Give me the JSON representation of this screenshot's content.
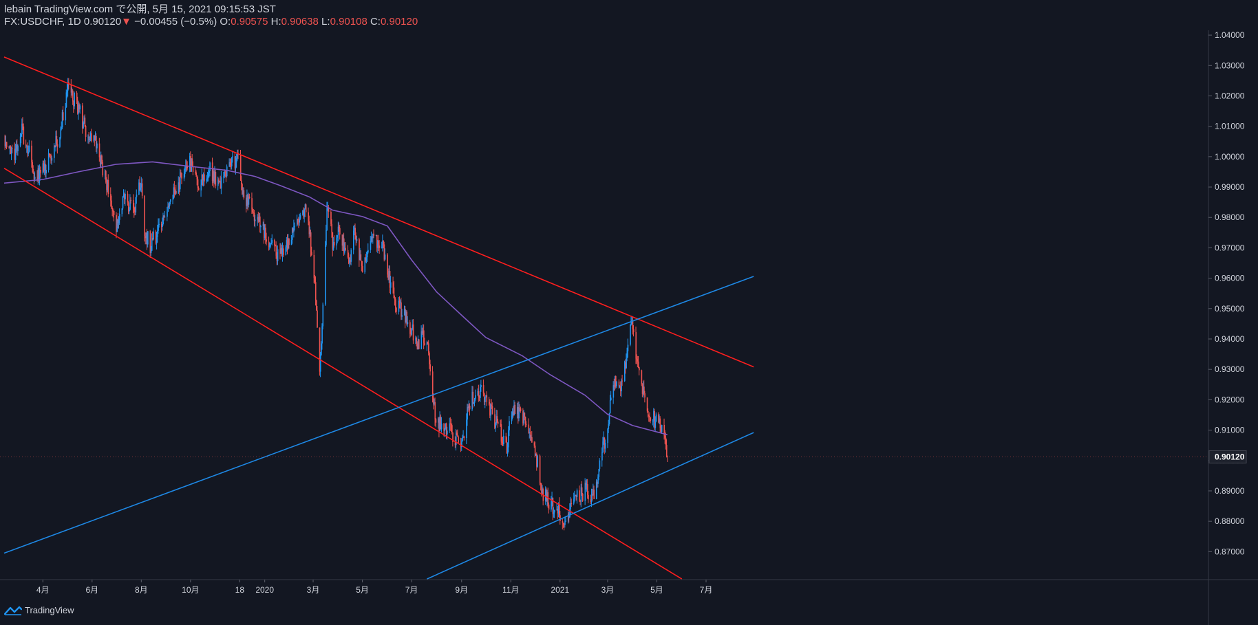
{
  "header": {
    "line1": "lebain TradingView.com で公開, 5月 15, 2021 09:15:53 JST",
    "symbol": "FX:USDCHF, 1D",
    "last": "0.90120",
    "down_arrow": "▼",
    "change": "−0.00455 (−0.5%)",
    "o_label": "O:",
    "o_val": "0.90575",
    "h_label": "H:",
    "h_val": "0.90638",
    "l_label": "L:",
    "l_val": "0.90108",
    "c_label": "C:",
    "c_val": "0.90120"
  },
  "footer": {
    "brand": "TradingView"
  },
  "colors": {
    "background": "#131722",
    "up": "#2196f3",
    "down": "#ef5350",
    "ma": "#7e57c2",
    "channel_red": "#ff1e1e",
    "channel_blue": "#1e88e5",
    "axis_text": "#d1d4dc",
    "axis_line": "#363a45"
  },
  "chart_data": {
    "type": "candlestick",
    "symbol": "FX:USDCHF",
    "interval": "1D",
    "ylim": [
      0.8608,
      1.0416
    ],
    "ytick_values": [
      0.87,
      0.88,
      0.89,
      0.9,
      0.91,
      0.92,
      0.93,
      0.94,
      0.95,
      0.96,
      0.97,
      0.98,
      0.99,
      1.0,
      1.01,
      1.02,
      1.03,
      1.04
    ],
    "ytick_labels": [
      "0.87000",
      "0.88000",
      "0.89000",
      "0.90000",
      "0.91000",
      "0.92000",
      "0.93000",
      "0.94000",
      "0.95000",
      "0.96000",
      "0.97000",
      "0.98000",
      "0.99000",
      "1.00000",
      "1.01000",
      "1.02000",
      "1.03000",
      "1.04000"
    ],
    "xtick_labels": [
      "4月",
      "6月",
      "8月",
      "10月",
      "18",
      "2020",
      "3月",
      "5月",
      "7月",
      "9月",
      "11月",
      "2021",
      "3月",
      "5月",
      "7月"
    ],
    "xtick_dates": [
      "2019-04-01",
      "2019-06-01",
      "2019-08-01",
      "2019-10-01",
      "2019-12-01",
      "2020-01-01",
      "2020-03-01",
      "2020-05-01",
      "2020-07-01",
      "2020-09-01",
      "2020-11-01",
      "2021-01-01",
      "2021-03-01",
      "2021-05-01",
      "2021-07-01"
    ],
    "last_price_label": "0.90120",
    "last_price": 0.9012,
    "price_path": [
      [
        "2019-02-12",
        1.0055
      ],
      [
        "2019-02-25",
        1.001
      ],
      [
        "2019-03-05",
        1.009
      ],
      [
        "2019-03-15",
        1.001
      ],
      [
        "2019-03-22",
        0.993
      ],
      [
        "2019-04-05",
        0.9975
      ],
      [
        "2019-04-20",
        1.006
      ],
      [
        "2019-05-02",
        1.022
      ],
      [
        "2019-05-15",
        1.016
      ],
      [
        "2019-05-25",
        1.008
      ],
      [
        "2019-06-05",
        1.005
      ],
      [
        "2019-06-18",
        0.992
      ],
      [
        "2019-07-01",
        0.976
      ],
      [
        "2019-07-10",
        0.986
      ],
      [
        "2019-07-22",
        0.982
      ],
      [
        "2019-08-01",
        0.992
      ],
      [
        "2019-08-05",
        0.975
      ],
      [
        "2019-08-12",
        0.971
      ],
      [
        "2019-08-28",
        0.978
      ],
      [
        "2019-09-10",
        0.988
      ],
      [
        "2019-09-30",
        0.9985
      ],
      [
        "2019-10-10",
        0.99
      ],
      [
        "2019-10-25",
        0.996
      ],
      [
        "2019-11-05",
        0.9895
      ],
      [
        "2019-11-12",
        0.994
      ],
      [
        "2019-11-29",
        1.0
      ],
      [
        "2019-12-05",
        0.988
      ],
      [
        "2019-12-20",
        0.98
      ],
      [
        "2020-01-08",
        0.972
      ],
      [
        "2020-01-15",
        0.968
      ],
      [
        "2020-01-28",
        0.971
      ],
      [
        "2020-02-10",
        0.977
      ],
      [
        "2020-02-21",
        0.984
      ],
      [
        "2020-03-02",
        0.962
      ],
      [
        "2020-03-09",
        0.93
      ],
      [
        "2020-03-19",
        0.986
      ],
      [
        "2020-03-25",
        0.97
      ],
      [
        "2020-04-03",
        0.977
      ],
      [
        "2020-04-14",
        0.963
      ],
      [
        "2020-04-21",
        0.976
      ],
      [
        "2020-05-01",
        0.963
      ],
      [
        "2020-05-14",
        0.974
      ],
      [
        "2020-05-26",
        0.97
      ],
      [
        "2020-06-10",
        0.952
      ],
      [
        "2020-06-22",
        0.948
      ],
      [
        "2020-07-08",
        0.939
      ],
      [
        "2020-07-20",
        0.941
      ],
      [
        "2020-07-31",
        0.913
      ],
      [
        "2020-08-18",
        0.91
      ],
      [
        "2020-09-01",
        0.904
      ],
      [
        "2020-09-08",
        0.918
      ],
      [
        "2020-09-25",
        0.924
      ],
      [
        "2020-10-12",
        0.913
      ],
      [
        "2020-10-27",
        0.905
      ],
      [
        "2020-11-03",
        0.918
      ],
      [
        "2020-11-20",
        0.912
      ],
      [
        "2020-12-01",
        0.904
      ],
      [
        "2020-12-10",
        0.889
      ],
      [
        "2020-12-30",
        0.883
      ],
      [
        "2021-01-06",
        0.879
      ],
      [
        "2021-01-20",
        0.887
      ],
      [
        "2021-02-01",
        0.89
      ],
      [
        "2021-02-12",
        0.888
      ],
      [
        "2021-02-26",
        0.908
      ],
      [
        "2021-03-10",
        0.927
      ],
      [
        "2021-03-18",
        0.925
      ],
      [
        "2021-03-31",
        0.945
      ],
      [
        "2021-04-12",
        0.924
      ],
      [
        "2021-04-23",
        0.915
      ],
      [
        "2021-05-05",
        0.911
      ],
      [
        "2021-05-11",
        0.905
      ],
      [
        "2021-05-14",
        0.9012
      ]
    ],
    "ma": [
      [
        "2019-02-12",
        0.9913
      ],
      [
        "2019-04-01",
        0.9925
      ],
      [
        "2019-05-15",
        0.995
      ],
      [
        "2019-07-01",
        0.9975
      ],
      [
        "2019-08-15",
        0.9983
      ],
      [
        "2019-10-01",
        0.9968
      ],
      [
        "2019-11-15",
        0.9955
      ],
      [
        "2019-12-20",
        0.9935
      ],
      [
        "2020-01-20",
        0.9905
      ],
      [
        "2020-02-25",
        0.9868
      ],
      [
        "2020-03-25",
        0.9824
      ],
      [
        "2020-05-01",
        0.9803
      ],
      [
        "2020-06-01",
        0.9772
      ],
      [
        "2020-07-01",
        0.966
      ],
      [
        "2020-08-01",
        0.9555
      ],
      [
        "2020-09-01",
        0.9478
      ],
      [
        "2020-10-01",
        0.9405
      ],
      [
        "2020-11-15",
        0.9345
      ],
      [
        "2020-12-20",
        0.9282
      ],
      [
        "2021-02-01",
        0.9215
      ],
      [
        "2021-03-01",
        0.9152
      ],
      [
        "2021-04-01",
        0.9115
      ],
      [
        "2021-05-14",
        0.9085
      ]
    ],
    "trendlines": [
      {
        "color": "red",
        "points": [
          [
            "2019-02-12",
            1.0328
          ],
          [
            "2021-08-29",
            0.9308
          ]
        ]
      },
      {
        "color": "red",
        "points": [
          [
            "2019-02-12",
            0.9962
          ],
          [
            "2021-06-01",
            0.861
          ]
        ]
      },
      {
        "color": "blue",
        "points": [
          [
            "2019-02-12",
            0.8695
          ],
          [
            "2021-08-29",
            0.9606
          ]
        ]
      },
      {
        "color": "blue",
        "points": [
          [
            "2020-07-20",
            0.861
          ],
          [
            "2021-08-29",
            0.9092
          ]
        ]
      }
    ]
  }
}
